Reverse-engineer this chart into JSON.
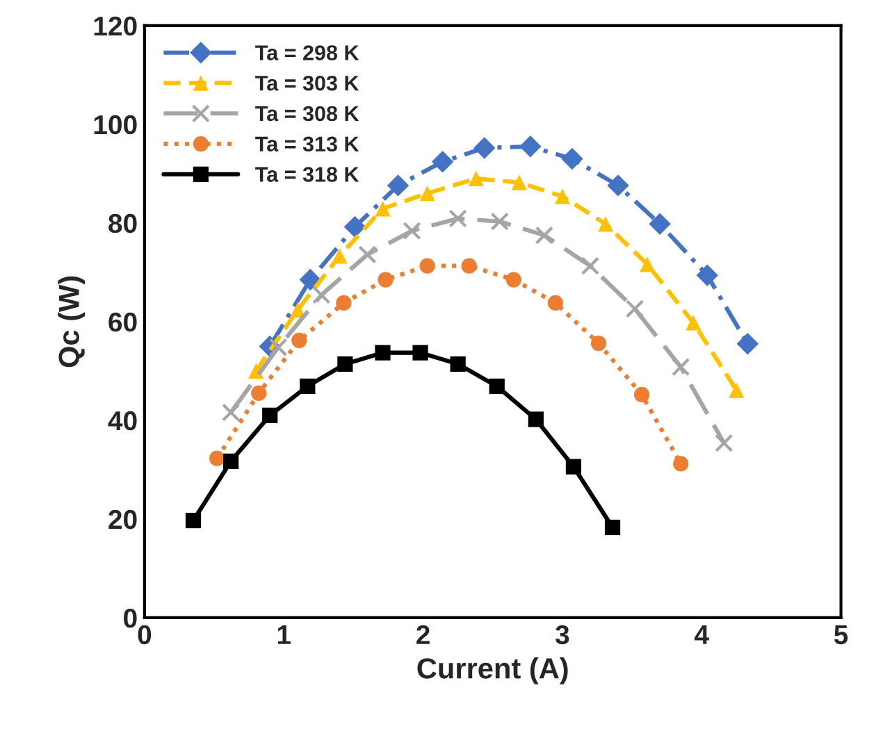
{
  "chart_data": {
    "type": "line",
    "xlabel": "Current (A)",
    "ylabel": "Qc (W)",
    "xlim": [
      0,
      5
    ],
    "xticks": [
      0,
      1,
      2,
      3,
      4,
      5
    ],
    "ylim": [
      0,
      120
    ],
    "yticks": [
      0,
      20,
      40,
      60,
      80,
      100,
      120
    ],
    "grid": false,
    "legend": "top left",
    "series": [
      {
        "name": "Ta = 298 K",
        "color": "#4472c4",
        "marker": "diamond",
        "line_style": "dashdot",
        "x": [
          0.9,
          1.19,
          1.51,
          1.82,
          2.14,
          2.44,
          2.77,
          3.07,
          3.4,
          3.7,
          4.04,
          4.33
        ],
        "values": [
          55,
          68.5,
          79.2,
          87.6,
          92.4,
          95.2,
          95.5,
          93,
          87.6,
          79.8,
          69.4,
          55.5
        ]
      },
      {
        "name": "Ta = 303 K",
        "color": "#ffc000",
        "marker": "triangle",
        "line_style": "dashed",
        "x": [
          0.8,
          1.1,
          1.4,
          1.71,
          2.03,
          2.38,
          2.69,
          3.0,
          3.31,
          3.61,
          3.94,
          4.25
        ],
        "values": [
          50,
          62.4,
          73.3,
          82.9,
          86,
          89,
          88.2,
          85.4,
          79.8,
          71.6,
          59.8,
          46.1
        ]
      },
      {
        "name": "Ta = 308 K",
        "color": "#a5a5a5",
        "marker": "cross",
        "line_style": "longdash",
        "x": [
          0.62,
          0.96,
          1.27,
          1.6,
          1.92,
          2.25,
          2.55,
          2.87,
          3.2,
          3.52,
          3.85,
          4.16
        ],
        "values": [
          41.6,
          54.8,
          65.4,
          73.6,
          78.4,
          80.9,
          80.3,
          77.5,
          71.3,
          62.6,
          50.8,
          35.4
        ]
      },
      {
        "name": "Ta = 313 K",
        "color": "#ed7d31",
        "marker": "circle",
        "line_style": "dotted",
        "x": [
          0.52,
          0.82,
          1.11,
          1.43,
          1.73,
          2.03,
          2.33,
          2.65,
          2.95,
          3.26,
          3.57,
          3.85
        ],
        "values": [
          32.3,
          45.5,
          56.2,
          63.8,
          68.5,
          71.3,
          71.3,
          68.5,
          63.8,
          55.6,
          45.2,
          31.2
        ]
      },
      {
        "name": "Ta = 318 K",
        "color": "#000000",
        "marker": "square",
        "line_style": "solid",
        "x": [
          0.35,
          0.62,
          0.9,
          1.17,
          1.44,
          1.71,
          1.98,
          2.25,
          2.53,
          2.81,
          3.08,
          3.36
        ],
        "values": [
          19.7,
          31.7,
          41,
          46.9,
          51.4,
          53.7,
          53.7,
          51.4,
          46.9,
          40.2,
          30.6,
          18.3
        ]
      }
    ]
  }
}
